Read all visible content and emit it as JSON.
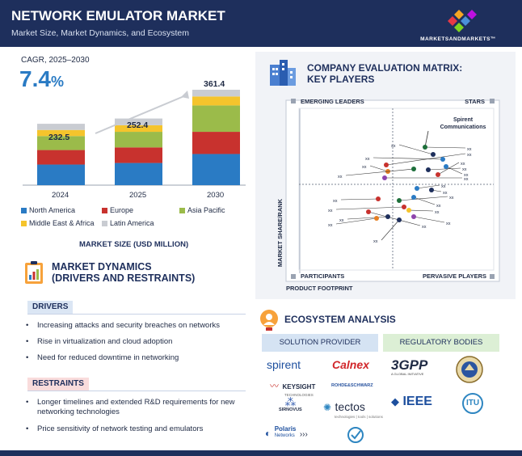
{
  "header": {
    "title": "NETWORK EMULATOR MARKET",
    "subtitle": "Market Size, Market Dynamics, and Ecosystem",
    "logo_text": "MARKETSANDMARKETS™"
  },
  "cagr": {
    "label": "CAGR, 2025–2030",
    "value": "7.4",
    "unit": "%"
  },
  "chart_data": {
    "type": "bar",
    "stacked": true,
    "categories": [
      "2024",
      "2025",
      "2030"
    ],
    "totals": [
      "232.5",
      "252.4",
      "361.4"
    ],
    "series": [
      {
        "name": "North America",
        "color": "#2a7bc4",
        "values": [
          78,
          84,
          118
        ]
      },
      {
        "name": "Europe",
        "color": "#c8322e",
        "values": [
          55,
          59,
          84
        ]
      },
      {
        "name": "Asia Pacific",
        "color": "#9bbb4a",
        "values": [
          53,
          59,
          100
        ]
      },
      {
        "name": "Middle East & Africa",
        "color": "#f5c42c",
        "values": [
          23,
          25,
          34
        ]
      },
      {
        "name": "Latin America",
        "color": "#c9ccd2",
        "values": [
          23.5,
          25.4,
          25.4
        ]
      }
    ],
    "ylim": [
      0,
      370
    ],
    "xlabel": "MARKET SIZE (USD MILLION)"
  },
  "dynamics": {
    "title_line1": "MARKET DYNAMICS",
    "title_line2": "(DRIVERS AND RESTRAINTS)",
    "drivers_label": "DRIVERS",
    "drivers": [
      "Increasing attacks and security breaches on networks",
      "Rise in virtualization and cloud adoption",
      "Need for reduced downtime in networking"
    ],
    "restraints_label": "RESTRAINTS",
    "restraints": [
      "Longer timelines and extended R&D requirements for new networking technologies",
      "Price sensitivity of network testing and emulators"
    ]
  },
  "matrix": {
    "title_line1": "COMPANY EVALUATION MATRIX:",
    "title_line2": "KEY PLAYERS",
    "q_emerging": "EMERGING LEADERS",
    "q_stars": "STARS",
    "q_participants": "PARTICIPANTS",
    "q_pervasive": "PERVASIVE PLAYERS",
    "y_axis": "MARKET SHARE/RANK",
    "x_axis": "PRODUCT FOOTPRINT",
    "highlight_line1": "Spirent",
    "highlight_line2": "Communications",
    "placeholder": "xx"
  },
  "ecosystem": {
    "title": "ECOSYSTEM ANALYSIS",
    "tab1": "SOLUTION PROVIDER",
    "tab2": "REGULATORY BODIES",
    "logos": {
      "spirent": "spirent",
      "calnex": "Calnex",
      "keysight": "KEYSIGHT",
      "keysight_sub": "TECHNOLOGIES",
      "rs": "ROHDE&SCHWARZ",
      "sirnovus": "SIRNOVUS",
      "tectos": "tectos",
      "tectos_sub": "technologies | tools | solutions",
      "polaris": "Polaris",
      "polaris_sub": "Networks",
      "tgpp": "3GPP",
      "tgpp_sub": "A GLOBAL INITIATIVE",
      "ieee": "IEEE",
      "itu": "ITU"
    }
  }
}
